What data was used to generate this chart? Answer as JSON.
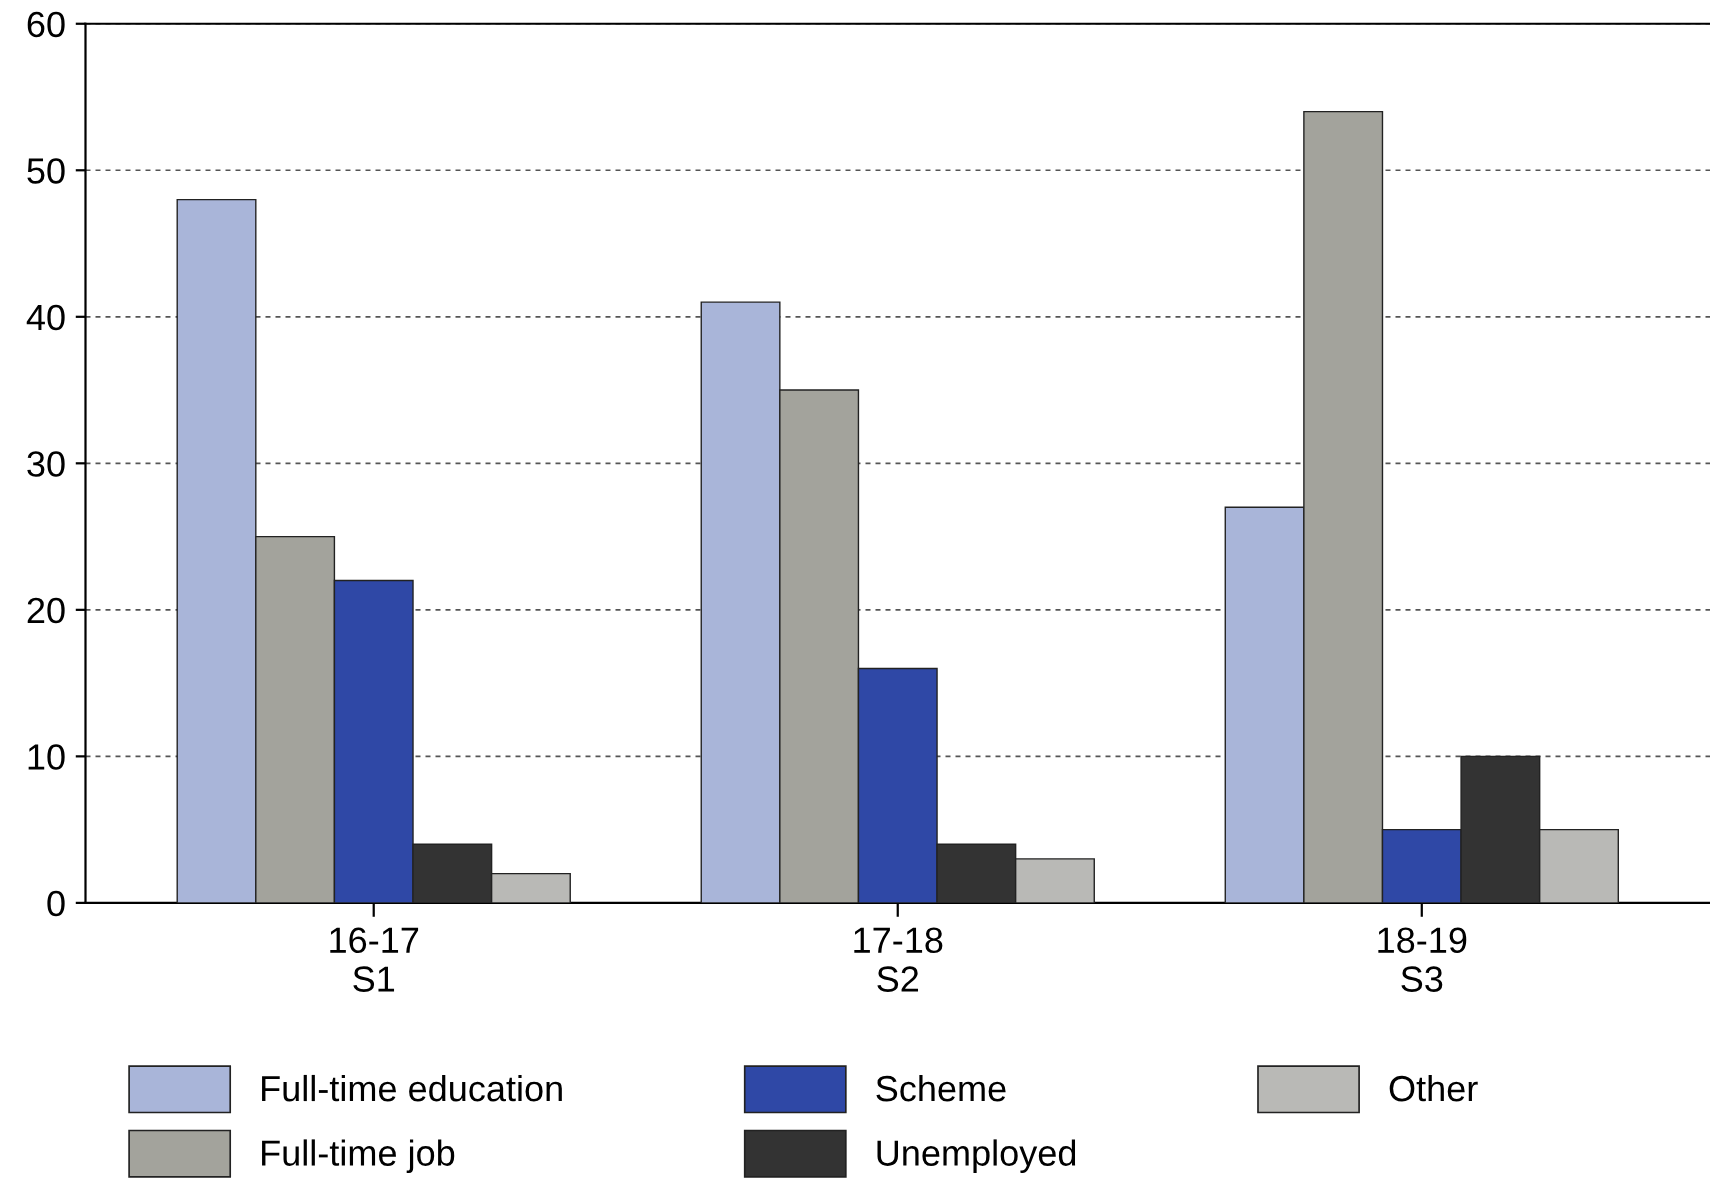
{
  "chart_data": {
    "type": "bar",
    "categories": [
      "16-17\nS1",
      "17-18\nS2",
      "18-19\nS3"
    ],
    "series": [
      {
        "name": "Full-time education",
        "color": "#a9b5d9",
        "values": [
          48,
          41,
          27
        ]
      },
      {
        "name": "Full-time job",
        "color": "#a3a39c",
        "values": [
          25,
          35,
          54
        ]
      },
      {
        "name": "Scheme",
        "color": "#2f48a6",
        "values": [
          22,
          16,
          5
        ]
      },
      {
        "name": "Unemployed",
        "color": "#333333",
        "values": [
          4,
          4,
          10
        ]
      },
      {
        "name": "Other",
        "color": "#b9b9b6",
        "values": [
          2,
          3,
          5
        ]
      }
    ],
    "ylim": [
      0,
      60
    ],
    "yticks": [
      0,
      10,
      20,
      30,
      40,
      50,
      60
    ],
    "grid": "y",
    "legend": "bottom"
  }
}
